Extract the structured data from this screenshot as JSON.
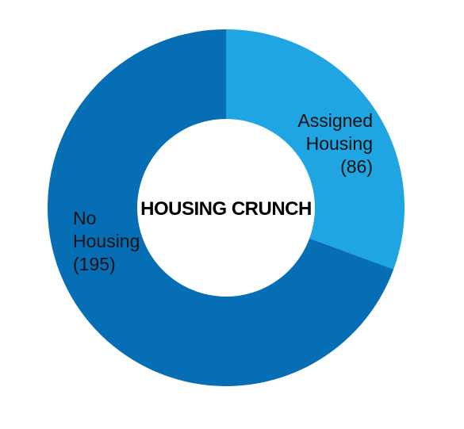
{
  "chart_data": {
    "type": "donut",
    "title": "HOUSING CRUNCH",
    "categories": [
      "Assigned Housing",
      "No Housing"
    ],
    "values": [
      86,
      195
    ],
    "value_labels": [
      "(86)",
      "(195)"
    ],
    "colors": [
      "#1fa5e2",
      "#066eb4"
    ]
  }
}
